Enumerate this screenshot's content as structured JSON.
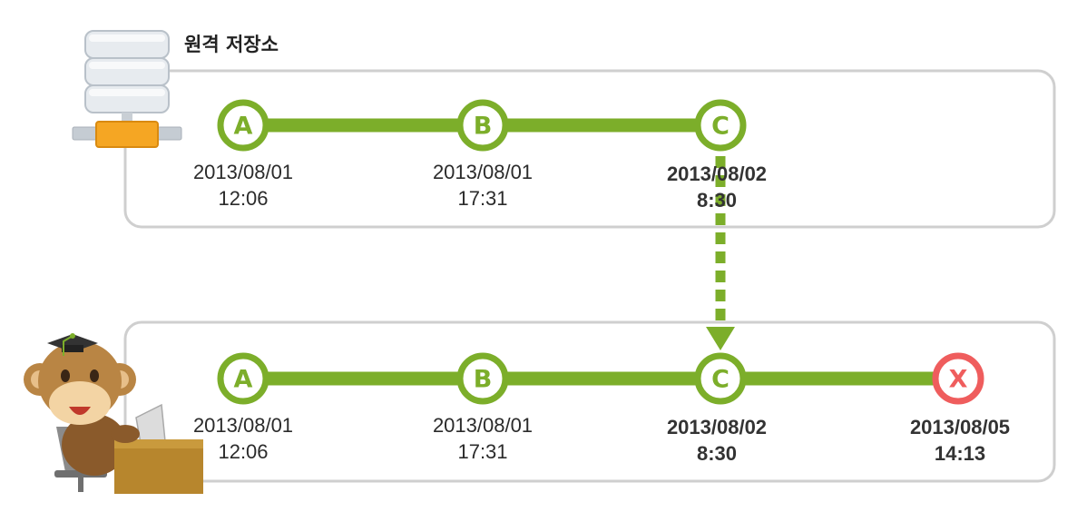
{
  "remote": {
    "title": "원격 저장소",
    "commits": [
      {
        "label": "A",
        "date": "2013/08/01",
        "time": "12:06",
        "emphasis": false
      },
      {
        "label": "B",
        "date": "2013/08/01",
        "time": "17:31",
        "emphasis": false
      },
      {
        "label": "C",
        "date": "2013/08/02",
        "time": "8:30",
        "emphasis": true
      }
    ]
  },
  "local": {
    "commits": [
      {
        "label": "A",
        "date": "2013/08/01",
        "time": "12:06",
        "emphasis": false
      },
      {
        "label": "B",
        "date": "2013/08/01",
        "time": "17:31",
        "emphasis": false
      },
      {
        "label": "C",
        "date": "2013/08/02",
        "time": "8:30",
        "emphasis": true
      },
      {
        "label": "X",
        "date": "2013/08/05",
        "time": "14:13",
        "emphasis": true
      }
    ]
  },
  "colors": {
    "commit": "#7cae2a",
    "new_commit": "#ef5d5d",
    "box_border": "#cfcfcf"
  },
  "icons": {
    "remote": "server-icon",
    "local": "monkey-developer-icon"
  }
}
